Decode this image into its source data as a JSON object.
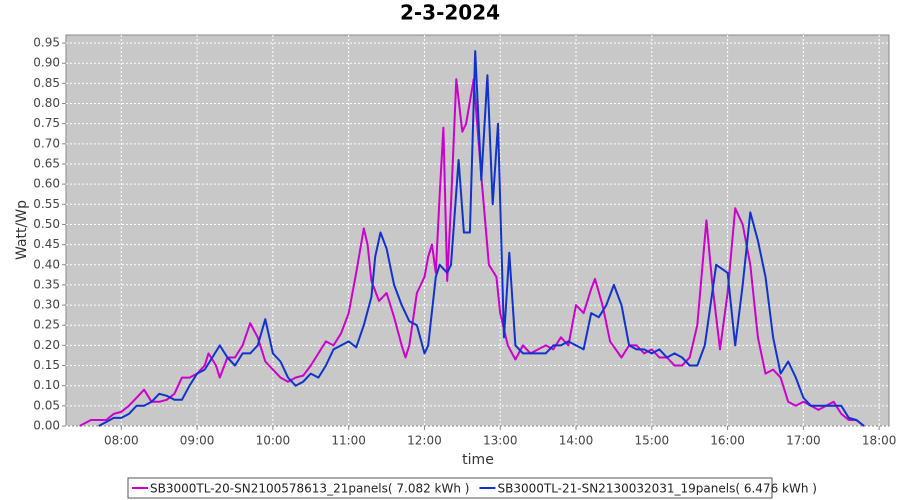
{
  "chart_data": {
    "type": "line",
    "title": "2-3-2024",
    "x_label": "time",
    "y_label": "Watt/Wp",
    "grid": true,
    "legend": "bottom",
    "xlim": [
      7.27,
      18.13
    ],
    "xticks": [
      {
        "value": 8,
        "label": "08:00"
      },
      {
        "value": 9,
        "label": "09:00"
      },
      {
        "value": 10,
        "label": "10:00"
      },
      {
        "value": 11,
        "label": "11:00"
      },
      {
        "value": 12,
        "label": "12:00"
      },
      {
        "value": 13,
        "label": "13:00"
      },
      {
        "value": 14,
        "label": "14:00"
      },
      {
        "value": 15,
        "label": "15:00"
      },
      {
        "value": 16,
        "label": "16:00"
      },
      {
        "value": 17,
        "label": "17:00"
      },
      {
        "value": 18,
        "label": "18:00"
      }
    ],
    "ylim": [
      0,
      0.97
    ],
    "yticks": [
      {
        "value": 0,
        "label": "0.00"
      },
      0.05,
      {
        "value": 0.1,
        "label": "0.10"
      },
      0.15,
      {
        "value": 0.2,
        "label": "0.20"
      },
      0.25,
      {
        "value": 0.3,
        "label": "0.30"
      },
      0.35,
      {
        "value": 0.4,
        "label": "0.40"
      },
      0.45,
      {
        "value": 0.5,
        "label": "0.50"
      },
      0.55,
      {
        "value": 0.6,
        "label": "0.60"
      },
      0.65,
      {
        "value": 0.7,
        "label": "0.70"
      },
      0.75,
      {
        "value": 0.8,
        "label": "0.80"
      },
      0.85,
      {
        "value": 0.9,
        "label": "0.90"
      },
      0.95
    ],
    "series": [
      {
        "name": "SB3000TL-20-SN2100578613_21panels( 7.082 kWh )",
        "color": "#cc00cc",
        "x": [
          7.45,
          7.6,
          7.8,
          7.9,
          8.0,
          8.1,
          8.2,
          8.3,
          8.4,
          8.5,
          8.6,
          8.7,
          8.8,
          8.9,
          9.0,
          9.1,
          9.15,
          9.25,
          9.3,
          9.4,
          9.5,
          9.6,
          9.7,
          9.8,
          9.9,
          10.0,
          10.1,
          10.2,
          10.3,
          10.4,
          10.5,
          10.6,
          10.7,
          10.8,
          10.9,
          11.0,
          11.1,
          11.2,
          11.25,
          11.3,
          11.4,
          11.5,
          11.6,
          11.7,
          11.75,
          11.8,
          11.9,
          12.0,
          12.05,
          12.1,
          12.15,
          12.2,
          12.25,
          12.3,
          12.35,
          12.42,
          12.5,
          12.55,
          12.65,
          12.75,
          12.85,
          12.95,
          13.0,
          13.1,
          13.2,
          13.3,
          13.4,
          13.5,
          13.6,
          13.7,
          13.8,
          13.9,
          14.0,
          14.1,
          14.2,
          14.25,
          14.35,
          14.45,
          14.6,
          14.7,
          14.8,
          14.9,
          15.0,
          15.1,
          15.2,
          15.3,
          15.4,
          15.5,
          15.6,
          15.72,
          15.8,
          15.9,
          16.0,
          16.1,
          16.2,
          16.3,
          16.4,
          16.5,
          16.6,
          16.7,
          16.8,
          16.9,
          17.0,
          17.1,
          17.2,
          17.3,
          17.4,
          17.5,
          17.6,
          17.7,
          17.8
        ],
        "values": [
          0,
          0.015,
          0.015,
          0.03,
          0.035,
          0.05,
          0.07,
          0.09,
          0.06,
          0.06,
          0.065,
          0.08,
          0.12,
          0.12,
          0.13,
          0.15,
          0.18,
          0.15,
          0.12,
          0.17,
          0.17,
          0.2,
          0.255,
          0.22,
          0.16,
          0.14,
          0.12,
          0.11,
          0.12,
          0.125,
          0.15,
          0.18,
          0.21,
          0.2,
          0.23,
          0.28,
          0.38,
          0.49,
          0.45,
          0.36,
          0.31,
          0.33,
          0.27,
          0.2,
          0.17,
          0.2,
          0.33,
          0.37,
          0.42,
          0.45,
          0.38,
          0.57,
          0.74,
          0.36,
          0.55,
          0.86,
          0.73,
          0.75,
          0.86,
          0.62,
          0.4,
          0.37,
          0.28,
          0.2,
          0.165,
          0.2,
          0.18,
          0.19,
          0.2,
          0.19,
          0.22,
          0.2,
          0.3,
          0.28,
          0.34,
          0.365,
          0.3,
          0.21,
          0.17,
          0.2,
          0.2,
          0.18,
          0.19,
          0.17,
          0.17,
          0.15,
          0.15,
          0.17,
          0.25,
          0.51,
          0.35,
          0.19,
          0.33,
          0.54,
          0.5,
          0.4,
          0.22,
          0.13,
          0.14,
          0.12,
          0.06,
          0.05,
          0.06,
          0.05,
          0.04,
          0.05,
          0.06,
          0.03,
          0.015,
          0.015,
          0
        ]
      },
      {
        "name": "SB3000TL-21-SN2130032031_19panels( 6.476 kWh )",
        "color": "#1133cc",
        "x": [
          7.7,
          7.8,
          7.9,
          8.0,
          8.1,
          8.2,
          8.3,
          8.4,
          8.5,
          8.6,
          8.7,
          8.8,
          8.9,
          9.0,
          9.1,
          9.2,
          9.3,
          9.4,
          9.5,
          9.6,
          9.7,
          9.8,
          9.9,
          10.0,
          10.1,
          10.2,
          10.3,
          10.4,
          10.5,
          10.6,
          10.7,
          10.8,
          10.9,
          11.0,
          11.1,
          11.2,
          11.3,
          11.35,
          11.42,
          11.5,
          11.6,
          11.7,
          11.8,
          11.9,
          12.0,
          12.05,
          12.15,
          12.2,
          12.3,
          12.35,
          12.45,
          12.52,
          12.6,
          12.67,
          12.75,
          12.83,
          12.9,
          12.97,
          13.05,
          13.12,
          13.2,
          13.3,
          13.4,
          13.5,
          13.6,
          13.7,
          13.8,
          13.9,
          14.0,
          14.1,
          14.2,
          14.3,
          14.4,
          14.5,
          14.6,
          14.7,
          14.8,
          14.9,
          15.0,
          15.1,
          15.2,
          15.3,
          15.4,
          15.5,
          15.6,
          15.7,
          15.85,
          16.0,
          16.1,
          16.2,
          16.3,
          16.4,
          16.5,
          16.6,
          16.7,
          16.8,
          16.9,
          17.0,
          17.1,
          17.2,
          17.3,
          17.4,
          17.5,
          17.6,
          17.7,
          17.8
        ],
        "values": [
          0,
          0.01,
          0.02,
          0.02,
          0.03,
          0.05,
          0.05,
          0.06,
          0.08,
          0.075,
          0.065,
          0.065,
          0.1,
          0.13,
          0.14,
          0.17,
          0.2,
          0.17,
          0.15,
          0.18,
          0.18,
          0.2,
          0.265,
          0.18,
          0.16,
          0.12,
          0.1,
          0.11,
          0.13,
          0.12,
          0.15,
          0.19,
          0.2,
          0.21,
          0.195,
          0.25,
          0.32,
          0.42,
          0.48,
          0.44,
          0.35,
          0.3,
          0.26,
          0.25,
          0.18,
          0.2,
          0.37,
          0.4,
          0.38,
          0.4,
          0.66,
          0.48,
          0.48,
          0.93,
          0.61,
          0.87,
          0.55,
          0.75,
          0.22,
          0.43,
          0.2,
          0.18,
          0.18,
          0.18,
          0.18,
          0.2,
          0.2,
          0.21,
          0.2,
          0.19,
          0.28,
          0.27,
          0.3,
          0.35,
          0.3,
          0.2,
          0.19,
          0.19,
          0.18,
          0.19,
          0.17,
          0.18,
          0.17,
          0.15,
          0.15,
          0.2,
          0.4,
          0.38,
          0.2,
          0.35,
          0.53,
          0.46,
          0.37,
          0.22,
          0.13,
          0.16,
          0.12,
          0.07,
          0.05,
          0.05,
          0.05,
          0.05,
          0.05,
          0.02,
          0.015,
          0
        ]
      }
    ]
  }
}
